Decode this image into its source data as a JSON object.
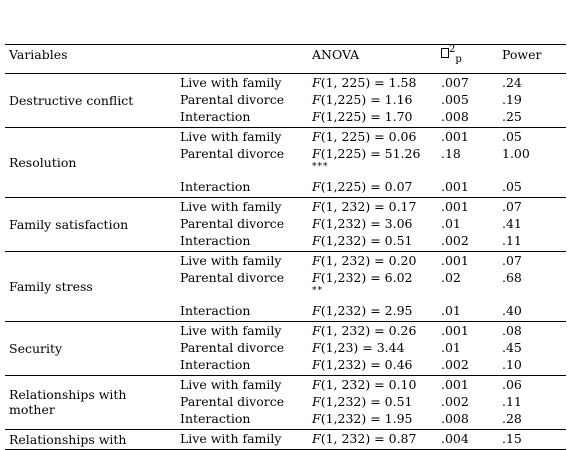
{
  "table": {
    "headers": {
      "variables": "Variables",
      "anova": "ANOVA",
      "eta_sup": "2",
      "eta_sub": "p",
      "power": "Power"
    },
    "groups": [
      {
        "variable": "Destructive conflict",
        "rows": [
          {
            "effect": "Live with family",
            "f": "(1, 225) = 1.58",
            "eta": ".007",
            "power": ".24"
          },
          {
            "effect": "Parental divorce",
            "f": "(1,225) = 1.16",
            "eta": ".005",
            "power": ".19"
          },
          {
            "effect": "Interaction",
            "f": "(1,225) = 1.70",
            "eta": ".008",
            "power": ".25"
          }
        ]
      },
      {
        "variable": "Resolution",
        "rows": [
          {
            "effect": "Live with family",
            "f": "(1, 225) = 0.06",
            "eta": ".001",
            "power": ".05"
          },
          {
            "effect": "Parental divorce",
            "f": "(1,225) = 51.26",
            "sig": "***",
            "eta": ".18",
            "power": "1.00"
          },
          {
            "effect": "Interaction",
            "f": "(1,225) = 0.07",
            "eta": ".001",
            "power": ".05"
          }
        ]
      },
      {
        "variable": "Family satisfaction",
        "rows": [
          {
            "effect": "Live with family",
            "f": "(1, 232) = 0.17",
            "eta": ".001",
            "power": ".07"
          },
          {
            "effect": "Parental divorce",
            "f": "(1,232) = 3.06",
            "eta": ".01",
            "power": ".41"
          },
          {
            "effect": "Interaction",
            "f": "(1,232) = 0.51",
            "eta": ".002",
            "power": ".11"
          }
        ]
      },
      {
        "variable": "Family stress",
        "rows": [
          {
            "effect": "Live with family",
            "f": "(1, 232) = 0.20",
            "eta": ".001",
            "power": ".07"
          },
          {
            "effect": "Parental divorce",
            "f": "(1,232) = 6.02",
            "sig": "**",
            "eta": ".02",
            "power": ".68"
          },
          {
            "effect": "Interaction",
            "f": "(1,232) = 2.95",
            "eta": ".01",
            "power": ".40"
          }
        ]
      },
      {
        "variable": "Security",
        "rows": [
          {
            "effect": "Live with family",
            "f": "(1, 232) = 0.26",
            "eta": ".001",
            "power": ".08"
          },
          {
            "effect": "Parental divorce",
            "f": "(1,23) = 3.44",
            "eta": ".01",
            "power": ".45"
          },
          {
            "effect": "Interaction",
            "f": "(1,232) = 0.46",
            "eta": ".002",
            "power": ".10"
          }
        ]
      },
      {
        "variable": "Relationships with mother",
        "rows": [
          {
            "effect": "Live with family",
            "f": "(1, 232) = 0.10",
            "eta": ".001",
            "power": ".06"
          },
          {
            "effect": "Parental divorce",
            "f": "(1,232) = 0.51",
            "eta": ".002",
            "power": ".11"
          },
          {
            "effect": "Interaction",
            "f": "(1,232) = 1.95",
            "eta": ".008",
            "power": ".28"
          }
        ]
      },
      {
        "variable": "Relationships with",
        "rows": [
          {
            "effect": "Live with family",
            "f": "(1, 232) = 0.87",
            "eta": ".004",
            "power": ".15"
          }
        ]
      }
    ]
  }
}
